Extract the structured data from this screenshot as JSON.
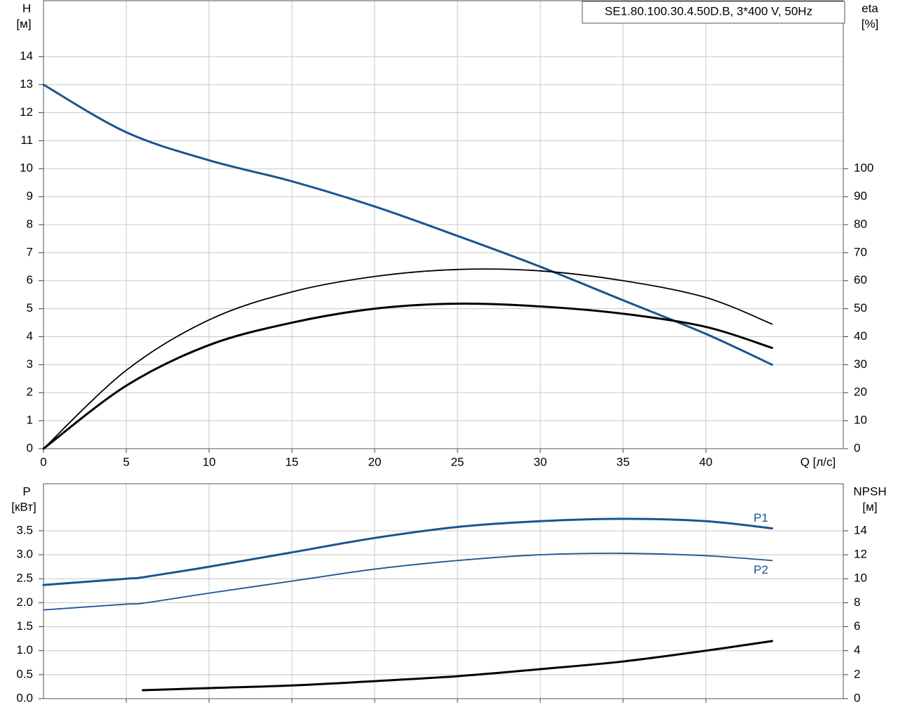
{
  "chart_data": [
    {
      "type": "line",
      "title": "SE1.80.100.30.4.50D.B, 3*400 V, 50Hz",
      "ylabel": "H",
      "yunit": "[м]",
      "y2label": "eta",
      "y2unit": "[%]",
      "xlabel": "Q [л/с]",
      "x": [
        0,
        5,
        10,
        15,
        20,
        25,
        30,
        35,
        40,
        44
      ],
      "xlim": [
        0,
        48.3
      ],
      "xticks": [
        0,
        5,
        10,
        15,
        20,
        25,
        30,
        35,
        40
      ],
      "ylim": [
        0,
        16
      ],
      "yticks": [
        0,
        1,
        2,
        3,
        4,
        5,
        6,
        7,
        8,
        9,
        10,
        11,
        12,
        13,
        14
      ],
      "y2lim": [
        0,
        160
      ],
      "y2ticks": [
        0,
        10,
        20,
        30,
        40,
        50,
        60,
        70,
        80,
        90,
        100
      ],
      "grid": true,
      "series": [
        {
          "color": "#1a5490",
          "line_width": 3,
          "values": [
            13,
            11.3,
            10.3,
            9.55,
            8.65,
            7.6,
            6.5,
            5.3,
            4.1,
            3.0
          ]
        },
        {
          "color": "#000000",
          "line_width": 1.8,
          "axis": "y2",
          "values": [
            0,
            28,
            46,
            56,
            61.5,
            64,
            63.5,
            60,
            54,
            44.5
          ]
        },
        {
          "color": "#000000",
          "line_width": 3,
          "axis": "y2",
          "values": [
            0,
            22.5,
            37,
            45,
            50,
            51.8,
            50.8,
            48.2,
            43.5,
            36
          ]
        }
      ]
    },
    {
      "type": "line",
      "ylabel": "P",
      "yunit": "[кВт]",
      "y2label": "NPSH",
      "y2unit": "[м]",
      "x": [
        0,
        5,
        6,
        10,
        15,
        20,
        25,
        30,
        35,
        40,
        44
      ],
      "xlim": [
        0,
        48.3
      ],
      "xticks": [
        5,
        10,
        15,
        20,
        25,
        30,
        35,
        40
      ],
      "xticklabels": false,
      "ylim": [
        0,
        4.48
      ],
      "yticks": [
        {
          "value": 0,
          "label": "0.0"
        },
        0.5,
        {
          "value": 1,
          "label": "1.0"
        },
        1.5,
        {
          "value": 2,
          "label": "2.0"
        },
        2.5,
        {
          "value": 3,
          "label": "3.0"
        },
        3.5
      ],
      "y2lim": [
        0,
        17.92
      ],
      "y2ticks": [
        0,
        2,
        4,
        6,
        8,
        10,
        12,
        14
      ],
      "grid": true,
      "series": [
        {
          "name": "P1",
          "color": "#1a5490",
          "line_width": 3,
          "values": [
            2.37,
            2.5,
            2.53,
            2.75,
            3.05,
            3.35,
            3.58,
            3.7,
            3.75,
            3.7,
            3.55
          ]
        },
        {
          "name": "P2",
          "color": "#1a5490",
          "line_width": 1.8,
          "values": [
            1.85,
            1.97,
            1.99,
            2.2,
            2.45,
            2.7,
            2.88,
            3.0,
            3.03,
            2.98,
            2.88
          ]
        },
        {
          "color": "#000000",
          "line_width": 3,
          "axis": "y2",
          "values": [
            null,
            null,
            0.7,
            0.88,
            1.1,
            1.46,
            1.87,
            2.46,
            3.1,
            4.0,
            4.8
          ]
        }
      ]
    }
  ]
}
